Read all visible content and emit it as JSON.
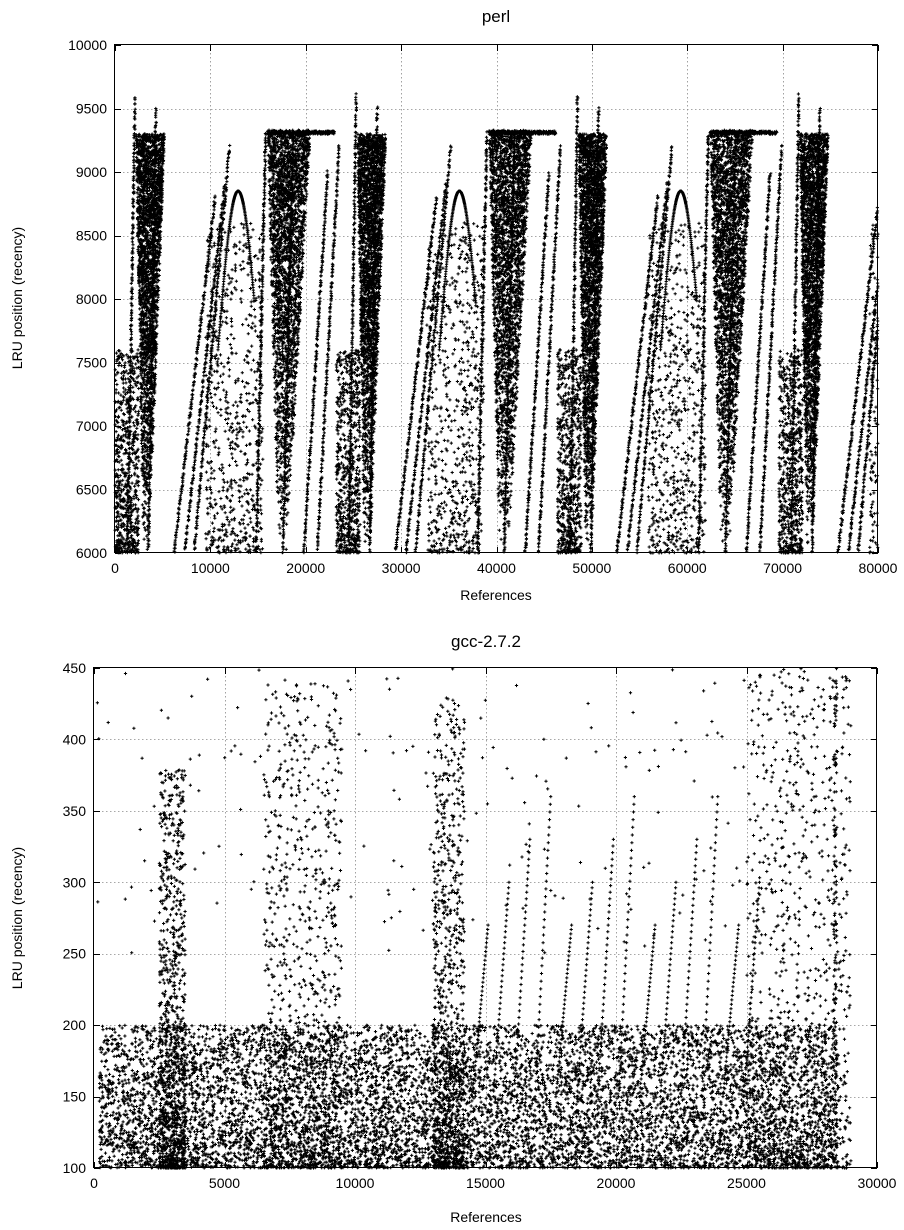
{
  "colors": {
    "points": "#000000",
    "grid": "#8a8a8a",
    "background": "#ffffff"
  },
  "chart_data": [
    {
      "type": "scatter",
      "title": "perl",
      "xlabel": "References",
      "ylabel": "LRU position (recency)",
      "xlim": [
        0,
        80000
      ],
      "ylim": [
        6000,
        10000
      ],
      "xticks": [
        0,
        10000,
        20000,
        30000,
        40000,
        50000,
        60000,
        70000,
        80000
      ],
      "yticks": [
        6000,
        6500,
        7000,
        7500,
        8000,
        8500,
        9000,
        9500,
        10000
      ],
      "grid": true,
      "marker": "+",
      "pattern": {
        "period_references": 23200,
        "repetitions": 3.3,
        "plateau_y": 9310,
        "diagonal_streaks": [
          {
            "x": [
              1300,
              2100
            ],
            "y": [
              6000,
              9600
            ]
          },
          {
            "x": [
              3500,
              4300
            ],
            "y": [
              6000,
              9500
            ]
          },
          {
            "x": [
              6200,
              10500
            ],
            "y": [
              6000,
              8800
            ]
          },
          {
            "x": [
              7300,
              11500
            ],
            "y": [
              6000,
              8900
            ]
          },
          {
            "x": [
              8300,
              12000
            ],
            "y": [
              6000,
              9200
            ]
          },
          {
            "x": [
              14800,
              15800
            ],
            "y": [
              6000,
              9300
            ]
          },
          {
            "x": [
              17600,
              18700
            ],
            "y": [
              6000,
              9300
            ]
          },
          {
            "x": [
              19800,
              22300
            ],
            "y": [
              6000,
              9000
            ]
          },
          {
            "x": [
              21200,
              23500
            ],
            "y": [
              6000,
              9200
            ]
          }
        ],
        "dense_bands": [
          {
            "x": [
              2200,
              5200
            ],
            "y": [
              6000,
              9300
            ]
          },
          {
            "x": [
              16000,
              20500
            ],
            "y": [
              6000,
              9330
            ]
          }
        ],
        "scatter_regions": [
          {
            "x": [
              9500,
              15500
            ],
            "y": [
              6000,
              8600
            ]
          },
          {
            "x": [
              0,
              2500
            ],
            "y": [
              6000,
              7600
            ]
          }
        ]
      }
    },
    {
      "type": "scatter",
      "title": "gcc-2.7.2",
      "xlabel": "References",
      "ylabel": "LRU position (recency)",
      "xlim": [
        0,
        30000
      ],
      "ylim": [
        100,
        450
      ],
      "xticks": [
        0,
        5000,
        10000,
        15000,
        20000,
        25000,
        30000
      ],
      "yticks": [
        100,
        150,
        200,
        250,
        300,
        350,
        400,
        450
      ],
      "grid": true,
      "marker": "+",
      "pattern": {
        "bottom_dense_band": {
          "y": [
            100,
            200
          ]
        },
        "tall_clusters": [
          {
            "x": [
              2500,
              3500
            ],
            "y": [
              100,
              380
            ]
          },
          {
            "x": [
              6500,
              9500
            ],
            "y": [
              100,
              440
            ]
          },
          {
            "x": [
              13000,
              14200
            ],
            "y": [
              100,
              430
            ]
          },
          {
            "x": [
              25000,
              29000
            ],
            "y": [
              100,
              450
            ]
          }
        ],
        "sparse_outliers": {
          "y": [
            250,
            450
          ]
        }
      }
    }
  ]
}
